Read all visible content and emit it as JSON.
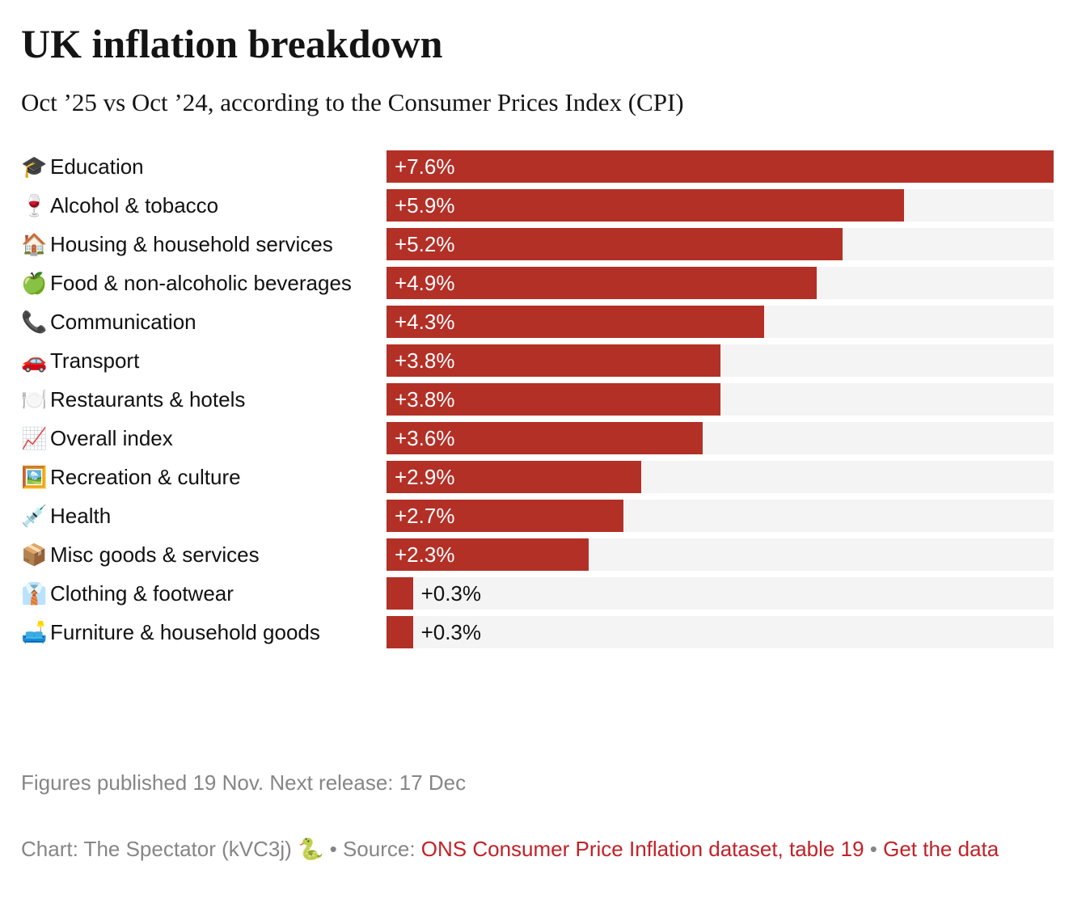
{
  "header": {
    "title": "UK inflation breakdown",
    "subtitle": "Oct ’25 vs Oct ’24, according to the Consumer Prices Index (CPI)"
  },
  "chart_data": {
    "type": "bar",
    "orientation": "horizontal",
    "title": "UK inflation breakdown",
    "subtitle": "Oct ’25 vs Oct ’24, according to the Consumer Prices Index (CPI)",
    "unit": "% change year-on-year",
    "xlim": [
      0,
      7.6
    ],
    "grid": false,
    "legend": false,
    "bar_color": "#b33027",
    "track_color": "#f4f4f4",
    "rows": [
      {
        "icon": "🎓",
        "label": "Education",
        "value": 7.6,
        "value_label": "+7.6%",
        "label_position": "inside"
      },
      {
        "icon": "🍷",
        "label": "Alcohol & tobacco",
        "value": 5.9,
        "value_label": "+5.9%",
        "label_position": "inside"
      },
      {
        "icon": "🏠",
        "label": "Housing & household services",
        "value": 5.2,
        "value_label": "+5.2%",
        "label_position": "inside"
      },
      {
        "icon": "🍏",
        "label": "Food & non-alcoholic beverages",
        "value": 4.9,
        "value_label": "+4.9%",
        "label_position": "inside"
      },
      {
        "icon": "📞",
        "label": "Communication",
        "value": 4.3,
        "value_label": "+4.3%",
        "label_position": "inside"
      },
      {
        "icon": "🚗",
        "label": "Transport",
        "value": 3.8,
        "value_label": "+3.8%",
        "label_position": "inside"
      },
      {
        "icon": "🍽️",
        "label": "Restaurants & hotels",
        "value": 3.8,
        "value_label": "+3.8%",
        "label_position": "inside"
      },
      {
        "icon": "📈",
        "label": "Overall index",
        "value": 3.6,
        "value_label": "+3.6%",
        "label_position": "inside"
      },
      {
        "icon": "🖼️",
        "label": "Recreation & culture",
        "value": 2.9,
        "value_label": "+2.9%",
        "label_position": "inside"
      },
      {
        "icon": "💉",
        "label": "Health",
        "value": 2.7,
        "value_label": "+2.7%",
        "label_position": "inside"
      },
      {
        "icon": "📦",
        "label": "Misc goods & services",
        "value": 2.3,
        "value_label": "+2.3%",
        "label_position": "inside"
      },
      {
        "icon": "👔",
        "label": "Clothing & footwear",
        "value": 0.3,
        "value_label": "+0.3%",
        "label_position": "outside"
      },
      {
        "icon": "🛋️",
        "label": "Furniture & household goods",
        "value": 0.3,
        "value_label": "+0.3%",
        "label_position": "outside"
      }
    ]
  },
  "footer": {
    "release_note": "Figures published 19 Nov. Next release: 17 Dec",
    "credit_prefix": "Chart: The Spectator (kVC3j)",
    "credit_emoji": "🐍",
    "separator": "•",
    "source_label": "Source:",
    "source_link": "ONS Consumer Price Inflation dataset, table 19",
    "get_data_link": "Get the data"
  }
}
